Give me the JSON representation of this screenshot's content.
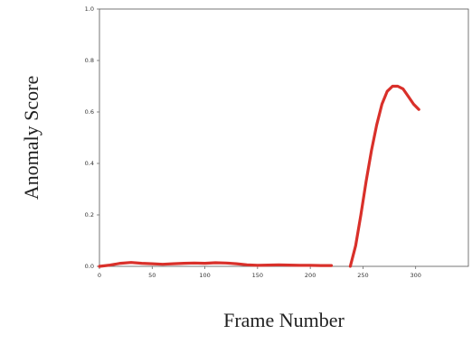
{
  "chart_data": {
    "type": "line",
    "title": "",
    "xlabel": "Frame Number",
    "ylabel": "Anomaly Score",
    "xlim": [
      0,
      350
    ],
    "ylim": [
      0,
      1.0
    ],
    "x_ticks": [
      0,
      50,
      100,
      150,
      200,
      250,
      300
    ],
    "x_tick_labels": [
      "0",
      "50",
      "100",
      "150",
      "200",
      "250",
      "300"
    ],
    "y_ticks": [
      0,
      0.2,
      0.4,
      0.6,
      0.8,
      1.0
    ],
    "y_tick_labels": [
      "0.0",
      "0.2",
      "0.4",
      "0.6",
      "0.8",
      "1.0"
    ],
    "grid": false,
    "legend": "none",
    "series": [
      {
        "color": "#d9302a",
        "x": [
          0,
          10,
          20,
          30,
          40,
          50,
          60,
          70,
          80,
          90,
          100,
          110,
          120,
          130,
          140,
          150,
          160,
          170,
          180,
          190,
          200,
          210,
          220
        ],
        "y": [
          0.0,
          0.005,
          0.012,
          0.015,
          0.012,
          0.01,
          0.008,
          0.01,
          0.012,
          0.013,
          0.012,
          0.014,
          0.013,
          0.01,
          0.006,
          0.004,
          0.005,
          0.006,
          0.005,
          0.004,
          0.004,
          0.003,
          0.003
        ]
      },
      {
        "color": "#d9302a",
        "x": [
          238,
          243,
          248,
          253,
          258,
          263,
          268,
          273,
          278,
          283,
          288,
          293,
          298,
          303
        ],
        "y": [
          0.0,
          0.08,
          0.2,
          0.33,
          0.45,
          0.55,
          0.63,
          0.68,
          0.7,
          0.7,
          0.69,
          0.66,
          0.63,
          0.61
        ]
      }
    ]
  }
}
